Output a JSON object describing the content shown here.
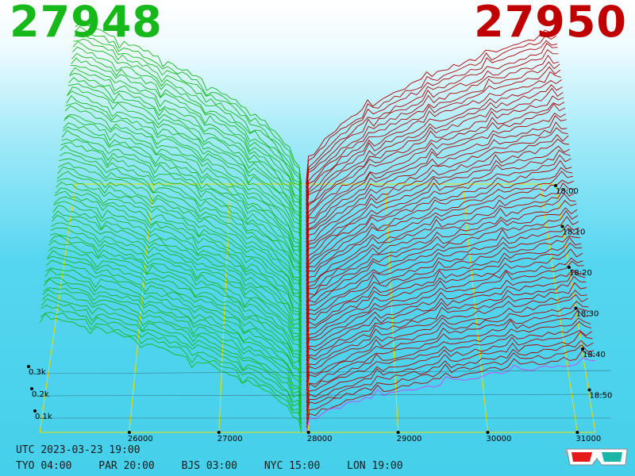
{
  "header": {
    "bid": "27948",
    "ask": "27950",
    "bid_color": "#16b81a",
    "ask_color": "#c00000"
  },
  "footer": {
    "utc_label": "UTC",
    "utc_value": "2023-03-23 19:00",
    "timezones": [
      {
        "label": "TYO",
        "time": "04:00"
      },
      {
        "label": "PAR",
        "time": "20:00"
      },
      {
        "label": "BJS",
        "time": "03:00"
      },
      {
        "label": "NYC",
        "time": "15:00"
      },
      {
        "label": "LON",
        "time": "19:00"
      }
    ]
  },
  "icons": {
    "glasses": "3d-glasses-icon"
  },
  "chart_data": {
    "type": "3d-depth-chart",
    "title": "",
    "x_ticks": [
      "26000",
      "27000",
      "28000",
      "29000",
      "30000",
      "31000"
    ],
    "x_range": [
      25000,
      31200
    ],
    "mid_price": 27949,
    "y_ticks": [
      "0.1k",
      "0.2k",
      "0.3k"
    ],
    "time_ticks": [
      "18:00",
      "18:10",
      "18:20",
      "18:30",
      "18:40",
      "18:50"
    ],
    "series": [
      {
        "name": "bids",
        "color": "#16b81a"
      },
      {
        "name": "asks",
        "color": "#b00000"
      }
    ],
    "grid_color": "#e8e000",
    "current_ask_color": "#cc44ff",
    "snapshots": 60,
    "depth_at_edge": {
      "bids_start": 240,
      "bids_end": 330,
      "asks_start": 150,
      "asks_end": 320
    }
  }
}
